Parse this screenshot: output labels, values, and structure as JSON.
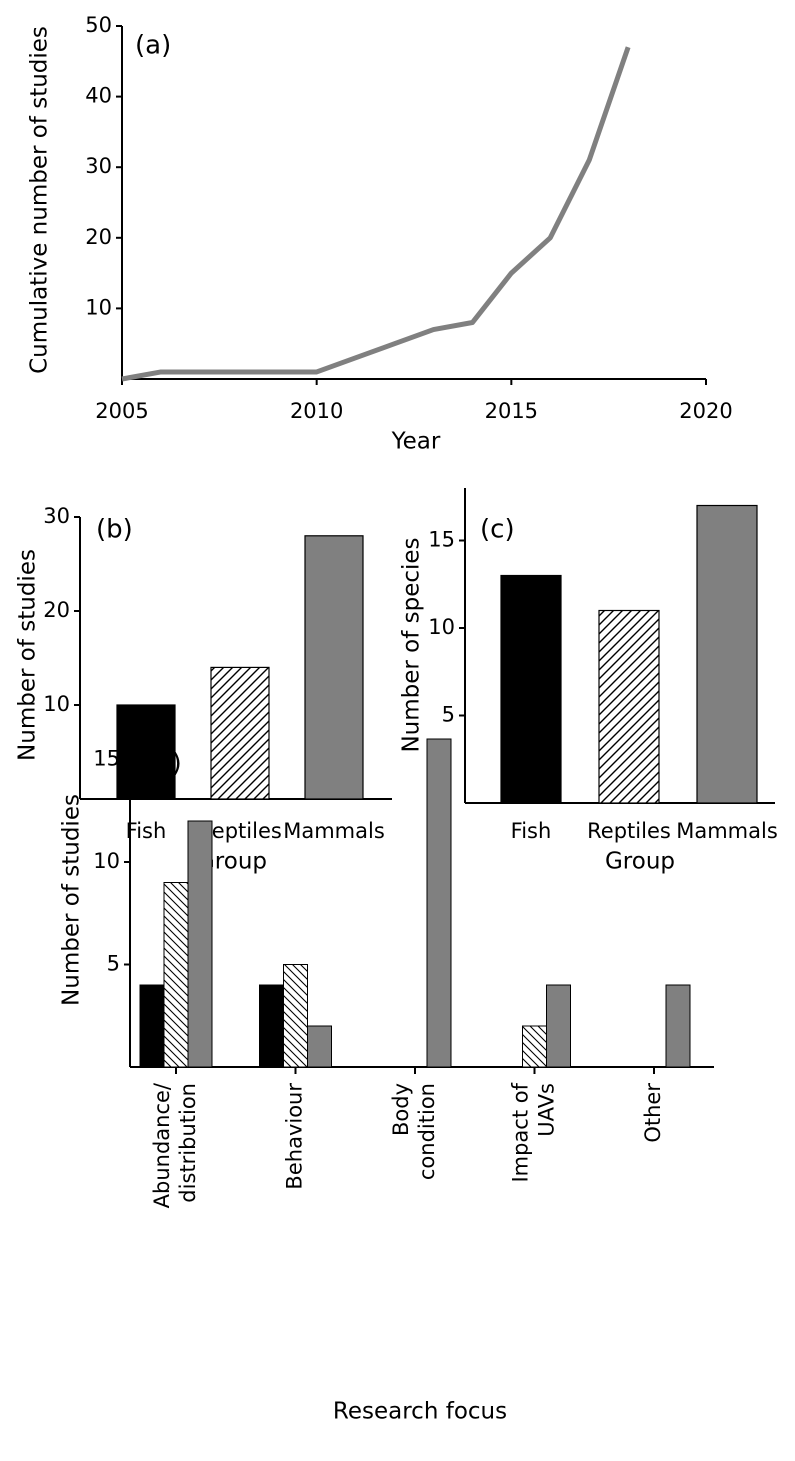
{
  "chart_data": [
    {
      "type": "line",
      "label": "(a)",
      "x_label": "Year",
      "y_label": "Cumulative number of studies",
      "x": [
        2005,
        2006,
        2007,
        2008,
        2009,
        2010,
        2011,
        2012,
        2013,
        2014,
        2015,
        2016,
        2017,
        2018
      ],
      "values": [
        0,
        1,
        1,
        1,
        1,
        1,
        3,
        5,
        7,
        8,
        15,
        20,
        31,
        47
      ],
      "color": "#808080",
      "xlim": [
        2005,
        2020
      ],
      "xticks": [
        2005,
        2010,
        2015,
        2020
      ],
      "ylim": [
        0,
        50
      ],
      "yticks": [
        10,
        20,
        30,
        40,
        50
      ]
    },
    {
      "type": "bar",
      "label": "(b)",
      "x_label": "Group",
      "y_label": "Number of studies",
      "categories": [
        "Fish",
        "Reptiles",
        "Mammals"
      ],
      "values": [
        10,
        14,
        28
      ],
      "colors": [
        "#000000",
        "#ffffff",
        "#808080"
      ],
      "hatch": [
        null,
        "forward",
        null
      ],
      "ylim": [
        0,
        30
      ],
      "yticks": [
        10,
        20,
        30
      ]
    },
    {
      "type": "bar",
      "label": "(c)",
      "x_label": "Group",
      "y_label": "Number of species",
      "categories": [
        "Fish",
        "Reptiles",
        "Mammals"
      ],
      "values": [
        13,
        11,
        17
      ],
      "colors": [
        "#000000",
        "#ffffff",
        "#808080"
      ],
      "hatch": [
        null,
        "forward",
        null
      ],
      "ylim": [
        0,
        18
      ],
      "yticks": [
        5,
        10,
        15
      ]
    },
    {
      "type": "grouped_bar",
      "label": "(d)",
      "x_label": "Research focus",
      "y_label": "Number of studies",
      "categories": [
        [
          "Abundance/",
          "distribution"
        ],
        [
          "Behaviour"
        ],
        [
          "Body",
          "condition"
        ],
        [
          "Impact of",
          "UAVs"
        ],
        [
          "Other"
        ]
      ],
      "series": [
        {
          "color": "#000000",
          "hatch": null,
          "values": [
            4,
            4,
            0,
            0,
            0
          ]
        },
        {
          "color": "#ffffff",
          "hatch": "backward",
          "values": [
            9,
            5,
            0,
            2,
            0
          ]
        },
        {
          "color": "#808080",
          "hatch": null,
          "values": [
            12,
            2,
            16,
            4,
            4
          ]
        }
      ],
      "ylim": [
        0,
        16
      ],
      "yticks": [
        5,
        10,
        15
      ]
    }
  ]
}
